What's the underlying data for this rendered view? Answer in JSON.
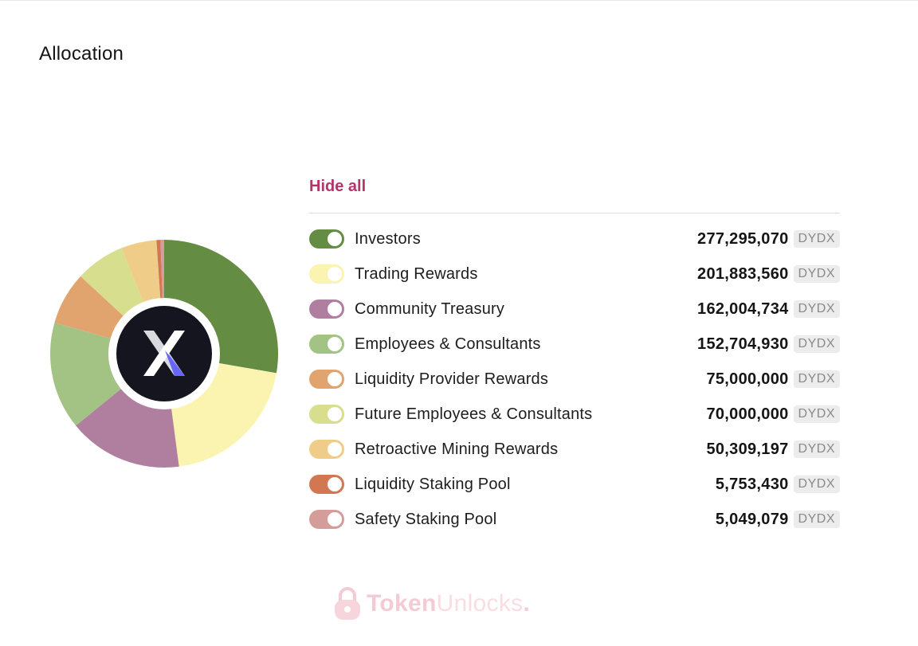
{
  "title": "Allocation",
  "hide_all_label": "Hide all",
  "unit": "DYDX",
  "watermark": {
    "part1": "Token",
    "part2": "Unlocks",
    "dot": "."
  },
  "center_logo": "dydx-logo",
  "colors": {
    "hide_all": "#b8336a"
  },
  "chart_data": {
    "type": "pie",
    "variant": "donut",
    "legend_placement": "right",
    "categories": [
      "Investors",
      "Trading Rewards",
      "Community Treasury",
      "Employees & Consultants",
      "Liquidity Provider Rewards",
      "Future Employees & Consultants",
      "Retroactive Mining Rewards",
      "Liquidity Staking Pool",
      "Safety Staking Pool"
    ],
    "values": [
      277295070,
      201883560,
      162004734,
      152704930,
      75000000,
      70000000,
      50309197,
      5753430,
      5049079
    ],
    "value_labels": [
      "277,295,070",
      "201,883,560",
      "162,004,734",
      "152,704,930",
      "75,000,000",
      "70,000,000",
      "50,309,197",
      "5,753,430",
      "5,049,079"
    ],
    "colors": [
      "#648d43",
      "#fbf4b0",
      "#b07f9f",
      "#a3c385",
      "#e2a46e",
      "#d7df8e",
      "#efcd88",
      "#d27752",
      "#d59d99"
    ],
    "enabled": [
      true,
      true,
      true,
      true,
      true,
      true,
      true,
      true,
      true
    ]
  }
}
